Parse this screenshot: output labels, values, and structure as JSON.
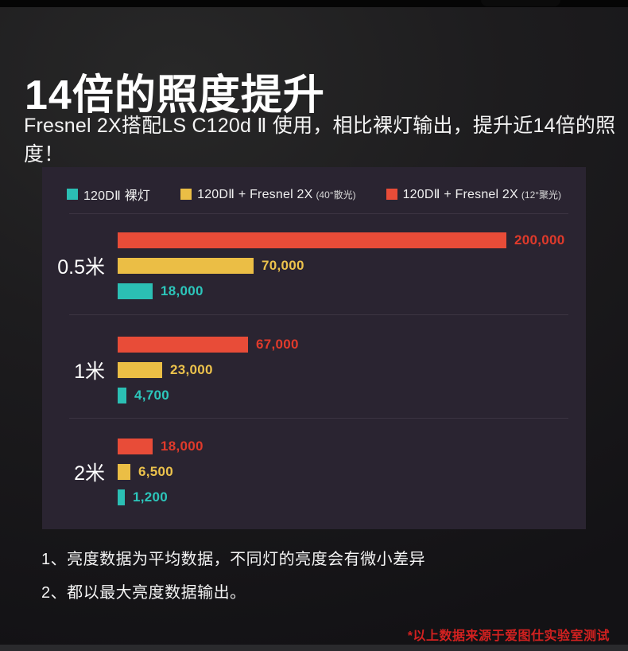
{
  "page": {
    "title": "14倍的照度提升",
    "subtitle": "Fresnel 2X搭配LS C120d Ⅱ 使用，相比裸灯输出，提升近14倍的照度！",
    "notes": [
      "1、亮度数据为平均数据，不同灯的亮度会有微小差异",
      "2、都以最大亮度数据输出。"
    ],
    "source_note": "*以上数据来源于爱图仕实验室测试"
  },
  "colors": {
    "teal": "#2BBFB4",
    "yellow": "#EBBE45",
    "red": "#E84C38",
    "teal_text": "#2CC6BB",
    "yellow_text": "#ECC24C",
    "red_text": "#E03A2B",
    "panel_bg": "#2A2431",
    "divider": "#3C3442",
    "source_red": "#D32120"
  },
  "chart_data": {
    "type": "bar",
    "orientation": "horizontal",
    "title": "",
    "xlabel": "",
    "ylabel": "",
    "xlim": [
      0,
      200000
    ],
    "grid": false,
    "legend_position": "top-center",
    "categories": [
      "0.5米",
      "1米",
      "2米"
    ],
    "legend": [
      {
        "label": "120DⅡ 裸灯",
        "sublabel": "",
        "color": "#2BBFB4"
      },
      {
        "label": "120DⅡ + Fresnel 2X",
        "sublabel": "(40°散光)",
        "color": "#EBBE45"
      },
      {
        "label": "120DⅡ + Fresnel 2X",
        "sublabel": "(12°聚光)",
        "color": "#E84C38"
      }
    ],
    "series": [
      {
        "name": "120DⅡ + Fresnel 2X (12°聚光)",
        "color_key": "red",
        "values": [
          200000,
          67000,
          18000
        ]
      },
      {
        "name": "120DⅡ + Fresnel 2X (40°散光)",
        "color_key": "yellow",
        "values": [
          70000,
          23000,
          6500
        ]
      },
      {
        "name": "120DⅡ 裸灯",
        "color_key": "teal",
        "values": [
          18000,
          4700,
          1200
        ]
      }
    ],
    "value_labels": [
      [
        "200,000",
        "70,000",
        "18,000"
      ],
      [
        "67,000",
        "23,000",
        "4,700"
      ],
      [
        "18,000",
        "6,500",
        "1,200"
      ]
    ]
  }
}
